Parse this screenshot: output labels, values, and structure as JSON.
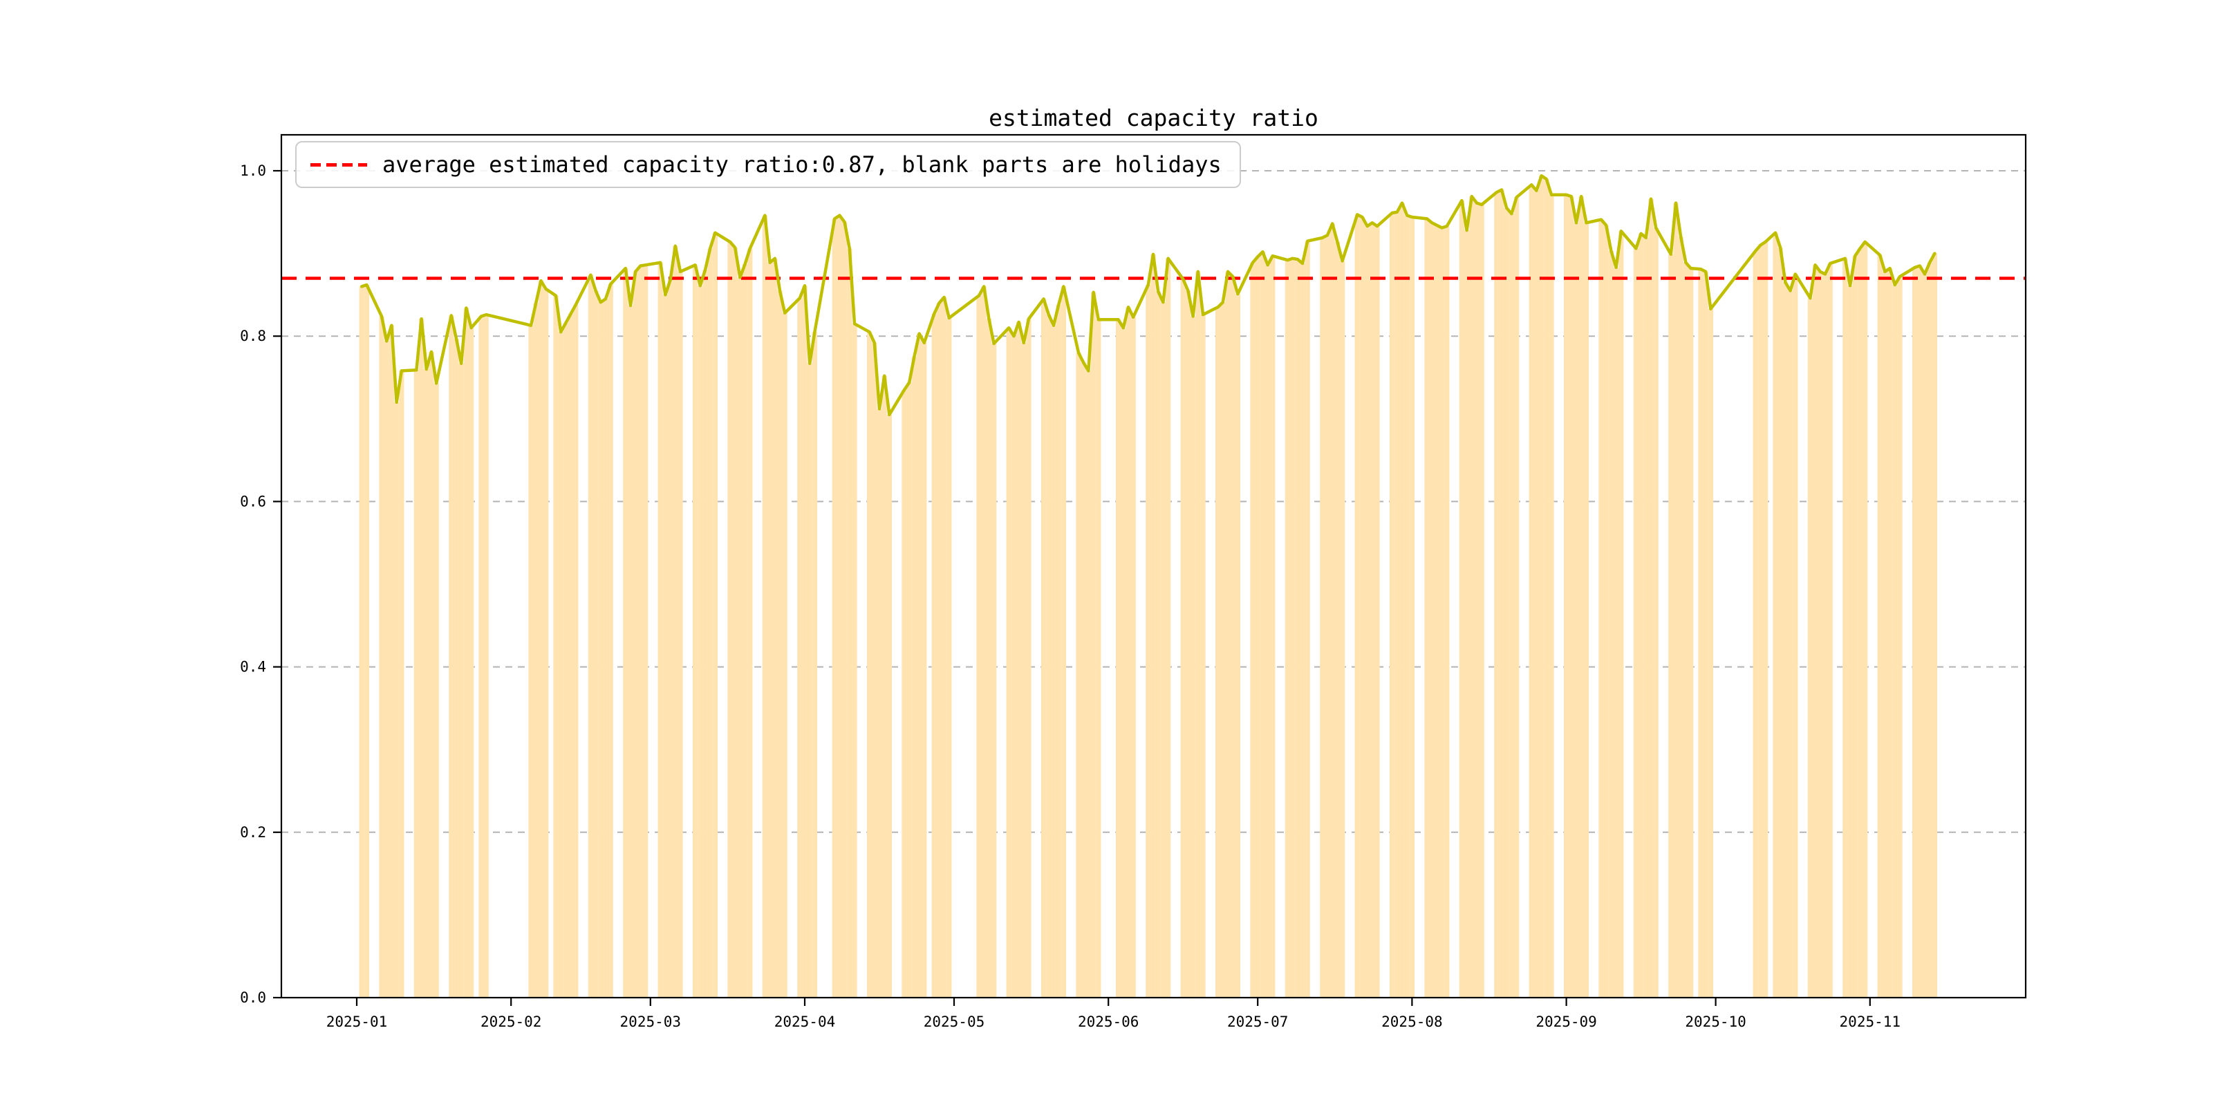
{
  "title": "estimated capacity ratio",
  "legend": {
    "label": "average estimated capacity ratio:0.87, blank parts are holidays",
    "sample": "red-dashed-line"
  },
  "axes": {
    "x_tick_labels": [
      "2025-01",
      "2025-02",
      "2025-03",
      "2025-04",
      "2025-05",
      "2025-06",
      "2025-07",
      "2025-08",
      "2025-09",
      "2025-10",
      "2025-11"
    ],
    "y_tick_labels": [
      "0.0",
      "0.2",
      "0.4",
      "0.6",
      "0.8",
      "1.0"
    ]
  },
  "colors": {
    "bar": "#ffe4b2",
    "bar_base": "#ffa500",
    "line": "#bfbf00",
    "average_line": "#ff0000",
    "grid": "#b3b3b3",
    "axis": "#000000",
    "legend_border": "#cccccc"
  },
  "chart_data": {
    "type": "bar",
    "overlay": "line",
    "title": "estimated capacity ratio",
    "xlabel": "",
    "ylabel": "",
    "ylim": [
      0.0,
      1.043
    ],
    "y_ticks": [
      0.0,
      0.2,
      0.4,
      0.6,
      0.8,
      1.0
    ],
    "x_tick_labels": [
      "2025-01",
      "2025-02",
      "2025-03",
      "2025-04",
      "2025-05",
      "2025-06",
      "2025-07",
      "2025-08",
      "2025-09",
      "2025-10",
      "2025-11"
    ],
    "grid": "horizontal-dashed",
    "legend_position": "upper-left",
    "average": 0.87,
    "note": "daily workday values; blank x ranges are weekends and holidays",
    "x": [
      "2025-01-02",
      "2025-01-03",
      "2025-01-06",
      "2025-01-07",
      "2025-01-08",
      "2025-01-09",
      "2025-01-10",
      "2025-01-13",
      "2025-01-14",
      "2025-01-15",
      "2025-01-16",
      "2025-01-17",
      "2025-01-20",
      "2025-01-21",
      "2025-01-22",
      "2025-01-23",
      "2025-01-24",
      "2025-01-26",
      "2025-01-27",
      "2025-02-05",
      "2025-02-06",
      "2025-02-07",
      "2025-02-08",
      "2025-02-10",
      "2025-02-11",
      "2025-02-12",
      "2025-02-13",
      "2025-02-14",
      "2025-02-17",
      "2025-02-18",
      "2025-02-19",
      "2025-02-20",
      "2025-02-21",
      "2025-02-24",
      "2025-02-25",
      "2025-02-26",
      "2025-02-27",
      "2025-02-28",
      "2025-03-03",
      "2025-03-04",
      "2025-03-05",
      "2025-03-06",
      "2025-03-07",
      "2025-03-10",
      "2025-03-11",
      "2025-03-12",
      "2025-03-13",
      "2025-03-14",
      "2025-03-17",
      "2025-03-18",
      "2025-03-19",
      "2025-03-20",
      "2025-03-21",
      "2025-03-24",
      "2025-03-25",
      "2025-03-26",
      "2025-03-27",
      "2025-03-28",
      "2025-03-31",
      "2025-04-01",
      "2025-04-02",
      "2025-04-03",
      "2025-04-07",
      "2025-04-08",
      "2025-04-09",
      "2025-04-10",
      "2025-04-11",
      "2025-04-14",
      "2025-04-15",
      "2025-04-16",
      "2025-04-17",
      "2025-04-18",
      "2025-04-21",
      "2025-04-22",
      "2025-04-23",
      "2025-04-24",
      "2025-04-25",
      "2025-04-27",
      "2025-04-28",
      "2025-04-29",
      "2025-04-30",
      "2025-05-06",
      "2025-05-07",
      "2025-05-08",
      "2025-05-09",
      "2025-05-12",
      "2025-05-13",
      "2025-05-14",
      "2025-05-15",
      "2025-05-16",
      "2025-05-19",
      "2025-05-20",
      "2025-05-21",
      "2025-05-22",
      "2025-05-23",
      "2025-05-26",
      "2025-05-27",
      "2025-05-28",
      "2025-05-29",
      "2025-05-30",
      "2025-06-03",
      "2025-06-04",
      "2025-06-05",
      "2025-06-06",
      "2025-06-09",
      "2025-06-10",
      "2025-06-11",
      "2025-06-12",
      "2025-06-13",
      "2025-06-16",
      "2025-06-17",
      "2025-06-18",
      "2025-06-19",
      "2025-06-20",
      "2025-06-23",
      "2025-06-24",
      "2025-06-25",
      "2025-06-26",
      "2025-06-27",
      "2025-06-30",
      "2025-07-01",
      "2025-07-02",
      "2025-07-03",
      "2025-07-04",
      "2025-07-07",
      "2025-07-08",
      "2025-07-09",
      "2025-07-10",
      "2025-07-11",
      "2025-07-14",
      "2025-07-15",
      "2025-07-16",
      "2025-07-17",
      "2025-07-18",
      "2025-07-21",
      "2025-07-22",
      "2025-07-23",
      "2025-07-24",
      "2025-07-25",
      "2025-07-28",
      "2025-07-29",
      "2025-07-30",
      "2025-07-31",
      "2025-08-01",
      "2025-08-04",
      "2025-08-05",
      "2025-08-06",
      "2025-08-07",
      "2025-08-08",
      "2025-08-11",
      "2025-08-12",
      "2025-08-13",
      "2025-08-14",
      "2025-08-15",
      "2025-08-18",
      "2025-08-19",
      "2025-08-20",
      "2025-08-21",
      "2025-08-22",
      "2025-08-25",
      "2025-08-26",
      "2025-08-27",
      "2025-08-28",
      "2025-08-29",
      "2025-09-01",
      "2025-09-02",
      "2025-09-03",
      "2025-09-04",
      "2025-09-05",
      "2025-09-08",
      "2025-09-09",
      "2025-09-10",
      "2025-09-11",
      "2025-09-12",
      "2025-09-15",
      "2025-09-16",
      "2025-09-17",
      "2025-09-18",
      "2025-09-19",
      "2025-09-22",
      "2025-09-23",
      "2025-09-24",
      "2025-09-25",
      "2025-09-26",
      "2025-09-28",
      "2025-09-29",
      "2025-09-30",
      "2025-10-09",
      "2025-10-10",
      "2025-10-11",
      "2025-10-13",
      "2025-10-14",
      "2025-10-15",
      "2025-10-16",
      "2025-10-17",
      "2025-10-20",
      "2025-10-21",
      "2025-10-22",
      "2025-10-23",
      "2025-10-24",
      "2025-10-27",
      "2025-10-28",
      "2025-10-29",
      "2025-10-30",
      "2025-10-31",
      "2025-11-03",
      "2025-11-04",
      "2025-11-05",
      "2025-11-06",
      "2025-11-07",
      "2025-11-10",
      "2025-11-11",
      "2025-11-12",
      "2025-11-13",
      "2025-11-14"
    ],
    "values": [
      0.86,
      0.862,
      0.824,
      0.794,
      0.813,
      0.72,
      0.758,
      0.759,
      0.821,
      0.76,
      0.781,
      0.743,
      0.825,
      0.797,
      0.767,
      0.834,
      0.81,
      0.824,
      0.826,
      0.813,
      0.84,
      0.867,
      0.857,
      0.849,
      0.805,
      0.816,
      0.827,
      0.838,
      0.874,
      0.855,
      0.841,
      0.845,
      0.863,
      0.882,
      0.837,
      0.878,
      0.885,
      0.886,
      0.889,
      0.85,
      0.868,
      0.909,
      0.878,
      0.886,
      0.861,
      0.88,
      0.906,
      0.925,
      0.914,
      0.907,
      0.871,
      0.887,
      0.906,
      0.946,
      0.889,
      0.894,
      0.855,
      0.828,
      0.846,
      0.861,
      0.767,
      0.805,
      0.942,
      0.946,
      0.938,
      0.906,
      0.815,
      0.805,
      0.792,
      0.712,
      0.752,
      0.705,
      0.735,
      0.744,
      0.775,
      0.803,
      0.792,
      0.827,
      0.84,
      0.847,
      0.822,
      0.849,
      0.86,
      0.821,
      0.791,
      0.81,
      0.8,
      0.817,
      0.792,
      0.821,
      0.845,
      0.826,
      0.813,
      0.838,
      0.86,
      0.78,
      0.768,
      0.758,
      0.853,
      0.82,
      0.82,
      0.81,
      0.835,
      0.823,
      0.862,
      0.899,
      0.854,
      0.841,
      0.894,
      0.869,
      0.855,
      0.824,
      0.878,
      0.826,
      0.835,
      0.841,
      0.878,
      0.872,
      0.851,
      0.889,
      0.896,
      0.902,
      0.886,
      0.897,
      0.892,
      0.894,
      0.893,
      0.888,
      0.915,
      0.919,
      0.922,
      0.936,
      0.914,
      0.891,
      0.947,
      0.944,
      0.933,
      0.937,
      0.933,
      0.949,
      0.95,
      0.961,
      0.946,
      0.944,
      0.942,
      0.937,
      0.934,
      0.931,
      0.933,
      0.964,
      0.928,
      0.969,
      0.961,
      0.959,
      0.974,
      0.977,
      0.955,
      0.948,
      0.968,
      0.983,
      0.976,
      0.994,
      0.99,
      0.971,
      0.971,
      0.969,
      0.937,
      0.969,
      0.937,
      0.941,
      0.934,
      0.903,
      0.883,
      0.927,
      0.906,
      0.924,
      0.919,
      0.966,
      0.931,
      0.899,
      0.961,
      0.92,
      0.889,
      0.882,
      0.881,
      0.878,
      0.833,
      0.903,
      0.91,
      0.914,
      0.925,
      0.907,
      0.865,
      0.855,
      0.875,
      0.846,
      0.886,
      0.878,
      0.875,
      0.888,
      0.894,
      0.861,
      0.897,
      0.906,
      0.914,
      0.898,
      0.878,
      0.882,
      0.862,
      0.872,
      0.883,
      0.885,
      0.875,
      0.889,
      0.9
    ]
  }
}
